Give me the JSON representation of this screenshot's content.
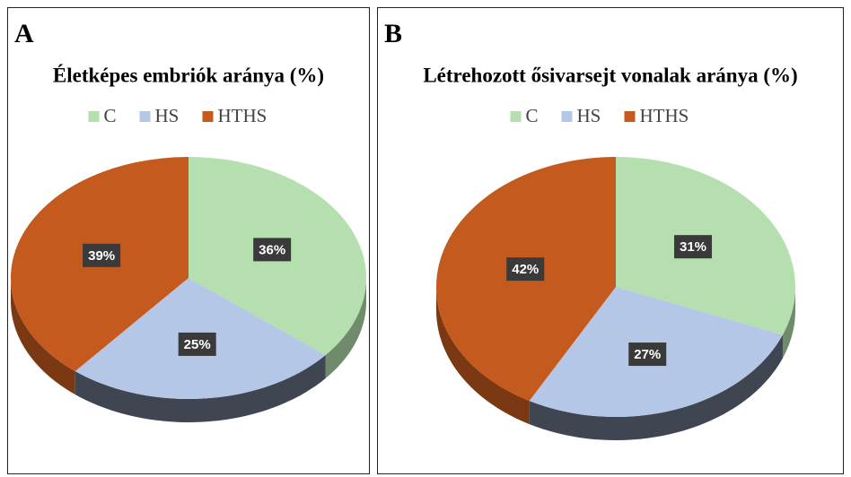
{
  "chart_data": [
    {
      "type": "pie",
      "panel": "A",
      "title": "Életképes embriók aránya (%)",
      "categories": [
        "C",
        "HS",
        "HTHS"
      ],
      "values": [
        36,
        25,
        39
      ],
      "value_labels": [
        "36%",
        "25%",
        "39%"
      ],
      "colors": [
        "#b5dfae",
        "#b4c7e7",
        "#c55a1e"
      ],
      "legend": "top"
    },
    {
      "type": "pie",
      "panel": "B",
      "title": "Létrehozott ősivarsejt vonalak aránya (%)",
      "categories": [
        "C",
        "HS",
        "HTHS"
      ],
      "values": [
        31,
        27,
        42
      ],
      "value_labels": [
        "31%",
        "27%",
        "42%"
      ],
      "colors": [
        "#b5dfae",
        "#b4c7e7",
        "#c55a1e"
      ],
      "legend": "top"
    }
  ]
}
